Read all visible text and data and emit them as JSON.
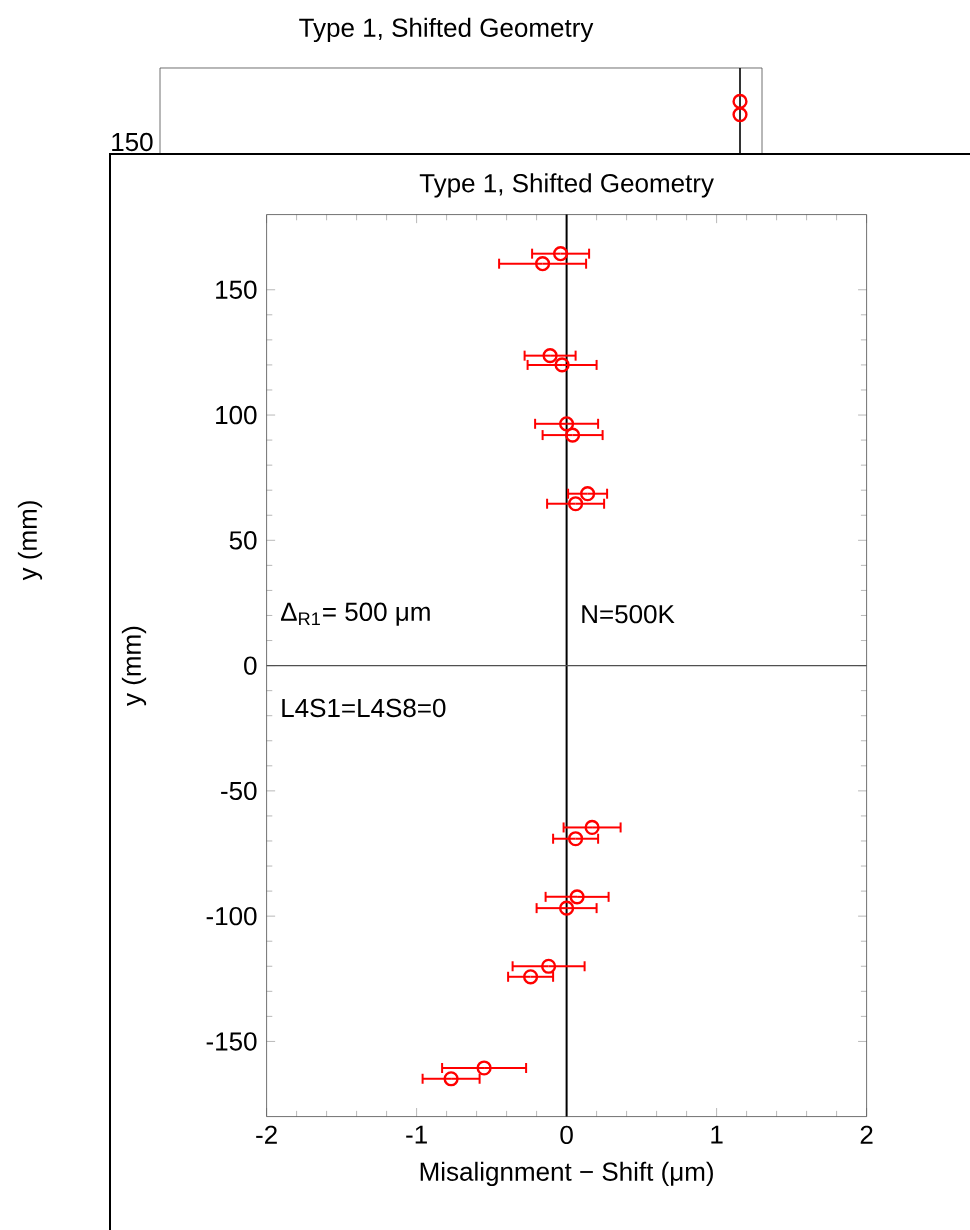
{
  "chart_data": [
    {
      "type": "other",
      "title": "Type 1, Shifted Geometry",
      "ylabel": "y (mm)",
      "annotations": [
        "150"
      ]
    },
    {
      "type": "scatter",
      "title": "Type 1, Shifted Geometry",
      "xlabel": "Misalignment − Shift (μm)",
      "ylabel": "y (mm)",
      "xlim": [
        -2,
        2
      ],
      "ylim": [
        -180,
        180
      ],
      "xticks": [
        -2,
        -1,
        0,
        1,
        2
      ],
      "yticks": [
        -150,
        -100,
        -50,
        0,
        50,
        100,
        150
      ],
      "marker": "circle",
      "annotations": [
        "Δ$_{R1}$= 500 μm",
        "N=500K",
        "L4S1=L4S8=0"
      ],
      "series": [
        {
          "color": "#ff0000",
          "x": [
            -0.04,
            -0.16,
            -0.11,
            -0.03,
            0.0,
            0.04,
            0.14,
            0.06,
            0.17,
            0.06,
            0.07,
            0.0,
            -0.12,
            -0.24,
            -0.55,
            -0.77
          ],
          "values": [
            164.4,
            160.4,
            123.7,
            120,
            96.5,
            92,
            68.6,
            64.6,
            -64.6,
            -69.1,
            -92.3,
            -96.8,
            -120,
            -124.2,
            -160.6,
            -164.9
          ],
          "xerrors": [
            0.19,
            0.29,
            0.17,
            0.23,
            0.21,
            0.2,
            0.13,
            0.19,
            0.19,
            0.15,
            0.21,
            0.2,
            0.24,
            0.15,
            0.28,
            0.19
          ]
        }
      ],
      "ref_lines": [
        {
          "axis": "x",
          "value": 0,
          "color": "#000000"
        },
        {
          "axis": "y",
          "value": 0,
          "color": "#505050"
        }
      ]
    }
  ]
}
